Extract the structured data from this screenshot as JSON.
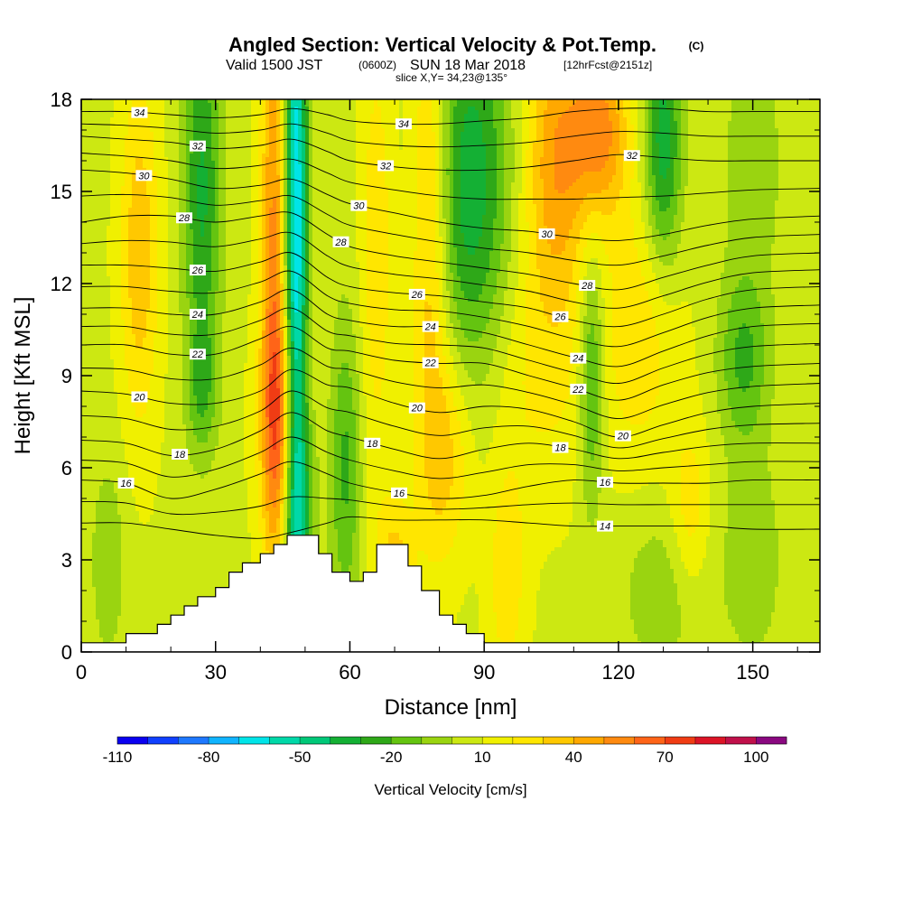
{
  "chart_data": {
    "type": "heatmap",
    "title": "Angled Section: Vertical Velocity & Pot.Temp.",
    "title_units": "(C)",
    "valid_prefix": "Valid 1500 JST",
    "valid_utc": "(0600Z)",
    "valid_date": "SUN 18 Mar 2018",
    "forecast": "[12hrFcst@2151z]",
    "slice": "slice X,Y= 34,23@135°",
    "xlabel": "Distance [nm]",
    "ylabel": "Height [Kft MSL]",
    "xlim": [
      0,
      165
    ],
    "ylim": [
      0,
      18
    ],
    "x_ticks": [
      0,
      30,
      60,
      90,
      120,
      150
    ],
    "y_ticks": [
      0,
      3,
      6,
      9,
      12,
      15,
      18
    ],
    "colorbar": {
      "title": "Vertical Velocity [cm/s]",
      "range": [
        -110,
        110
      ],
      "step": 10,
      "tick_labels": [
        -110,
        -80,
        -50,
        -20,
        10,
        40,
        70,
        100
      ],
      "colors": [
        "#0a00f0",
        "#1040ff",
        "#1e78ff",
        "#10b4ff",
        "#00e4e8",
        "#00d8a8",
        "#00c878",
        "#14b034",
        "#2ea818",
        "#64c410",
        "#9ad410",
        "#cce812",
        "#f0f000",
        "#ffe600",
        "#ffc800",
        "#ffa800",
        "#ff8a10",
        "#ff6418",
        "#f03c14",
        "#dc1426",
        "#c0104a",
        "#8a0880"
      ]
    },
    "terrain_profile": {
      "x": [
        0,
        10,
        17,
        20,
        23,
        26,
        30,
        33,
        36,
        40,
        43,
        46,
        53,
        56,
        60,
        63,
        66,
        70,
        73,
        76,
        80,
        83,
        86,
        90,
        165
      ],
      "y": [
        0.3,
        0.6,
        0.9,
        1.2,
        1.5,
        1.8,
        2.1,
        2.6,
        2.9,
        3.2,
        3.5,
        3.8,
        3.2,
        2.6,
        2.3,
        2.6,
        3.5,
        3.5,
        2.8,
        2.0,
        1.2,
        0.9,
        0.6,
        0.3,
        0.3
      ]
    },
    "velocity_features": [
      {
        "x": 48,
        "y": 13,
        "sx": 1.8,
        "sy": 9,
        "v": -80
      },
      {
        "x": 49,
        "y": 5,
        "sx": 2.5,
        "sy": 2.5,
        "v": -30
      },
      {
        "x": 43,
        "y": 13,
        "sx": 2.0,
        "sy": 8,
        "v": 45
      },
      {
        "x": 45,
        "y": 7.5,
        "sx": 3.5,
        "sy": 2.5,
        "v": 40
      },
      {
        "x": 27,
        "y": 15,
        "sx": 3.0,
        "sy": 4.5,
        "v": -40
      },
      {
        "x": 27,
        "y": 8.5,
        "sx": 2.5,
        "sy": 1.5,
        "v": -20
      },
      {
        "x": 13,
        "y": 13,
        "sx": 3.0,
        "sy": 4,
        "v": 30
      },
      {
        "x": 6,
        "y": 3,
        "sx": 3.0,
        "sy": 2.5,
        "v": -15
      },
      {
        "x": 59,
        "y": 6,
        "sx": 2.5,
        "sy": 3.5,
        "v": -30
      },
      {
        "x": 66,
        "y": 13,
        "sx": 2.5,
        "sy": 5,
        "v": 20
      },
      {
        "x": 70,
        "y": 3,
        "sx": 3.0,
        "sy": 1.5,
        "v": 25
      },
      {
        "x": 78,
        "y": 14,
        "sx": 3.0,
        "sy": 6,
        "v": 35
      },
      {
        "x": 82,
        "y": 6.5,
        "sx": 4.0,
        "sy": 2.5,
        "v": 25
      },
      {
        "x": 87,
        "y": 15,
        "sx": 6.5,
        "sy": 5,
        "v": -45
      },
      {
        "x": 106,
        "y": 16,
        "sx": 5.0,
        "sy": 3.5,
        "v": 40
      },
      {
        "x": 116,
        "y": 17,
        "sx": 4.5,
        "sy": 2.0,
        "v": 45
      },
      {
        "x": 114,
        "y": 9,
        "sx": 2.0,
        "sy": 3,
        "v": -35
      },
      {
        "x": 130,
        "y": 16.5,
        "sx": 3.0,
        "sy": 3,
        "v": -45
      },
      {
        "x": 148,
        "y": 9.5,
        "sx": 4.0,
        "sy": 2.0,
        "v": -30
      },
      {
        "x": 150,
        "y": 16,
        "sx": 5.0,
        "sy": 3,
        "v": -15
      },
      {
        "x": 130,
        "y": 2.0,
        "sx": 7.0,
        "sy": 2.0,
        "v": -15
      },
      {
        "x": 150,
        "y": 3.0,
        "sx": 5.0,
        "sy": 2.5,
        "v": -15
      },
      {
        "x": 95,
        "y": 2.5,
        "sx": 3.0,
        "sy": 2.5,
        "v": 20
      },
      {
        "x": 136,
        "y": 4.5,
        "sx": 3.0,
        "sy": 2.0,
        "v": 20
      },
      {
        "x": 100,
        "y": 9,
        "sx": 10.0,
        "sy": 3,
        "v": 14
      },
      {
        "x": 125,
        "y": 10.5,
        "sx": 6.0,
        "sy": 3,
        "v": 20
      }
    ],
    "background_velocity": 8,
    "theta_contours": [
      {
        "level": 14,
        "label": "14",
        "y": [
          4.2,
          4.2,
          4.0,
          3.8,
          3.7,
          3.9,
          4.2,
          4.4,
          4.3,
          4.3,
          4.3,
          4.2,
          4.1,
          4.1,
          4.1,
          4.1,
          4.0,
          4.0
        ]
      },
      {
        "level": 16,
        "label": "16",
        "y": [
          5.6,
          5.5,
          5.0,
          5.3,
          5.8,
          6.2,
          5.8,
          5.5,
          5.2,
          5.0,
          5.1,
          5.4,
          5.6,
          5.5,
          5.5,
          5.5,
          5.6,
          5.6
        ]
      },
      {
        "level": 18,
        "label": "18",
        "y": [
          6.9,
          6.8,
          6.4,
          6.6,
          7.2,
          7.8,
          7.2,
          7.0,
          6.6,
          6.3,
          6.6,
          6.8,
          6.6,
          6.3,
          6.5,
          6.7,
          6.8,
          6.8
        ]
      },
      {
        "level": 20,
        "label": "20",
        "y": [
          8.5,
          8.4,
          8.1,
          8.1,
          8.5,
          9.2,
          8.7,
          8.6,
          8.1,
          7.8,
          8.0,
          7.9,
          7.5,
          7.0,
          7.4,
          7.8,
          8.0,
          8.1
        ]
      },
      {
        "level": 22,
        "label": "22",
        "y": [
          10.0,
          10.0,
          9.7,
          9.7,
          10.2,
          10.6,
          9.9,
          9.8,
          9.5,
          9.4,
          9.4,
          9.0,
          8.6,
          8.2,
          8.7,
          9.1,
          9.3,
          9.4
        ]
      },
      {
        "level": 24,
        "label": "24",
        "y": [
          11.2,
          11.2,
          11.0,
          11.0,
          11.4,
          11.8,
          11.0,
          10.8,
          10.6,
          10.6,
          10.4,
          10.0,
          9.6,
          9.3,
          9.8,
          10.3,
          10.6,
          10.7
        ]
      },
      {
        "level": 26,
        "label": "26",
        "y": [
          12.6,
          12.6,
          12.5,
          12.4,
          12.7,
          13.0,
          12.2,
          11.9,
          11.7,
          11.6,
          11.4,
          11.2,
          10.8,
          10.6,
          11.0,
          11.5,
          11.8,
          11.9
        ]
      },
      {
        "level": 28,
        "label": "28",
        "y": [
          14.0,
          14.2,
          14.2,
          14.0,
          14.2,
          14.3,
          13.6,
          13.2,
          12.9,
          12.7,
          12.5,
          12.3,
          12.0,
          11.8,
          12.2,
          12.6,
          12.9,
          13.0
        ]
      },
      {
        "level": 30,
        "label": "30",
        "y": [
          15.7,
          15.6,
          15.4,
          15.1,
          15.2,
          15.4,
          14.9,
          14.6,
          14.3,
          14.0,
          13.8,
          13.7,
          13.5,
          13.4,
          13.6,
          13.9,
          14.1,
          14.2
        ]
      },
      {
        "level": 32,
        "label": "32",
        "y": [
          16.8,
          16.7,
          16.6,
          16.4,
          16.5,
          16.7,
          16.3,
          16.0,
          15.8,
          15.7,
          15.7,
          15.8,
          16.0,
          16.2,
          16.1,
          16.0,
          16.0,
          16.0
        ]
      },
      {
        "level": 34,
        "label": "34",
        "y": [
          17.6,
          17.6,
          17.5,
          17.4,
          17.5,
          17.7,
          17.5,
          17.3,
          17.2,
          17.2,
          17.3,
          17.4,
          17.6,
          17.7,
          17.7,
          17.6,
          17.6,
          17.6
        ]
      }
    ],
    "theta_x": [
      0,
      10,
      20,
      30,
      40,
      47,
      55,
      60,
      70,
      80,
      90,
      100,
      110,
      120,
      130,
      140,
      150,
      165
    ],
    "contour_label_positions": [
      {
        "level": 34,
        "x": [
          13,
          72
        ]
      },
      {
        "level": 32,
        "x": [
          26,
          68,
          123
        ]
      },
      {
        "level": 30,
        "x": [
          14,
          62,
          104
        ]
      },
      {
        "level": 28,
        "x": [
          23,
          58,
          113
        ]
      },
      {
        "level": 26,
        "x": [
          26,
          75,
          107
        ]
      },
      {
        "level": 24,
        "x": [
          26,
          78,
          111
        ]
      },
      {
        "level": 22,
        "x": [
          26,
          78,
          111
        ]
      },
      {
        "level": 20,
        "x": [
          13,
          75,
          121
        ]
      },
      {
        "level": 18,
        "x": [
          22,
          65,
          107
        ]
      },
      {
        "level": 16,
        "x": [
          10,
          71,
          117
        ]
      },
      {
        "level": 14,
        "x": [
          117
        ]
      }
    ]
  }
}
